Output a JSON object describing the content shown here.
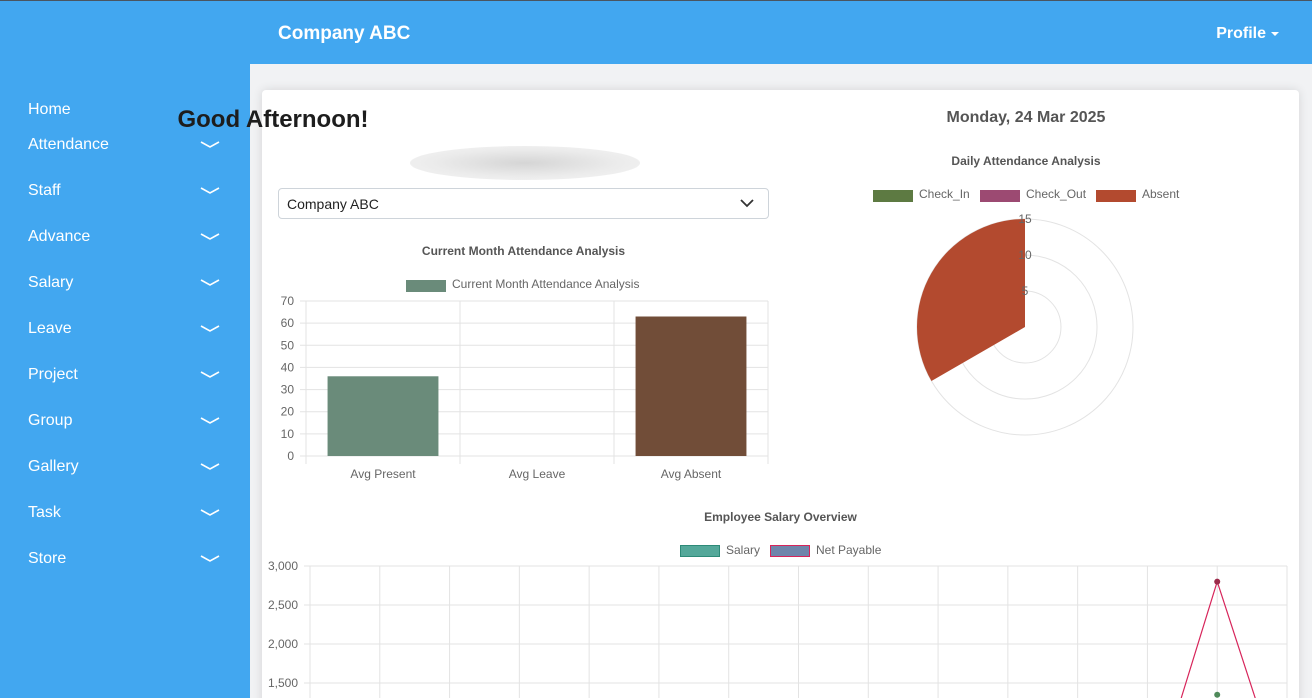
{
  "header": {
    "brand": "Company ABC",
    "profile_label": "Profile"
  },
  "sidebar": {
    "items": [
      {
        "label": "Home",
        "has_chevron": false
      },
      {
        "label": "Attendance",
        "has_chevron": true
      },
      {
        "label": "Staff",
        "has_chevron": true
      },
      {
        "label": "Advance",
        "has_chevron": true
      },
      {
        "label": "Salary",
        "has_chevron": true
      },
      {
        "label": "Leave",
        "has_chevron": true
      },
      {
        "label": "Project",
        "has_chevron": true
      },
      {
        "label": "Group",
        "has_chevron": true
      },
      {
        "label": "Gallery",
        "has_chevron": true
      },
      {
        "label": "Task",
        "has_chevron": true
      },
      {
        "label": "Store",
        "has_chevron": true
      }
    ]
  },
  "main": {
    "greeting": "Good Afternoon!",
    "date": "Monday, 24 Mar 2025",
    "company_select": {
      "value": "Company ABC"
    }
  },
  "colors": {
    "primary": "#42a7f0",
    "avg_present": "#6a8b7a",
    "avg_absent": "#714d38",
    "check_in": "#5d7a42",
    "check_out": "#9c4a72",
    "absent": "#b34a2f",
    "salary": "#54a89a",
    "net_payable": "#6f85ab",
    "net_payable_line": "#d7245a"
  },
  "chart_data": [
    {
      "type": "bar",
      "title": "Current Month Attendance Analysis",
      "categories": [
        "Avg Present",
        "Avg Leave",
        "Avg Absent"
      ],
      "series": [
        {
          "name": "Current Month Attendance Analysis",
          "values": [
            36,
            0,
            63
          ]
        }
      ],
      "y_ticks": [
        "0",
        "10",
        "20",
        "30",
        "40",
        "50",
        "60",
        "70"
      ],
      "ylim": [
        0,
        70
      ],
      "grid": true,
      "legend": "top"
    },
    {
      "type": "polarArea",
      "title": "Daily Attendance Analysis",
      "categories": [
        "Check_In",
        "Check_Out",
        "Absent"
      ],
      "values": [
        0,
        0,
        15
      ],
      "r_ticks": [
        "5",
        "10",
        "15"
      ],
      "rlim": [
        0,
        15
      ],
      "legend": "top"
    },
    {
      "type": "line",
      "title": "Employee Salary Overview",
      "series": [
        {
          "name": "Salary",
          "values": []
        },
        {
          "name": "Net Payable",
          "values": []
        }
      ],
      "y_ticks": [
        "1,500",
        "2,000",
        "2,500",
        "3,000"
      ],
      "visible_points": {
        "net_payable_peak": 2800,
        "salary_point": 1350
      },
      "ylim": [
        1500,
        3000
      ],
      "grid": true,
      "legend": "top"
    }
  ]
}
